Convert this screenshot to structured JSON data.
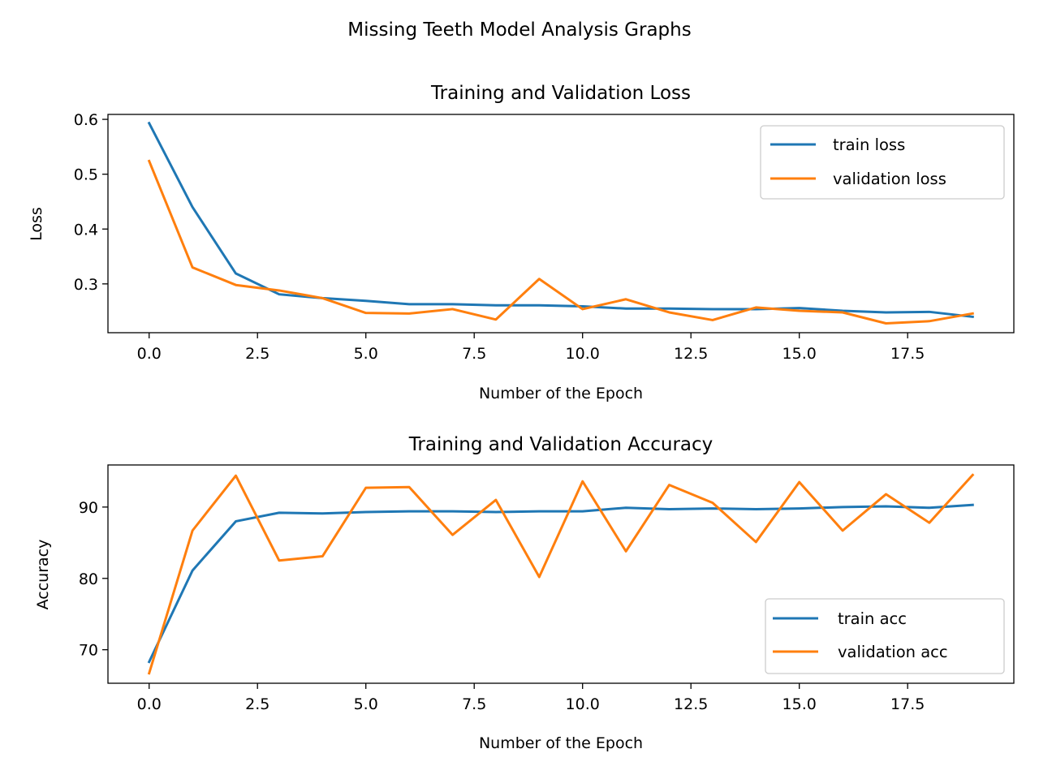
{
  "figure": {
    "suptitle": "Missing Teeth Model Analysis Graphs",
    "colors": {
      "train": "#1f77b4",
      "validation": "#ff7f0e"
    }
  },
  "chart_data": [
    {
      "type": "line",
      "title": "Training and Validation Loss",
      "xlabel": "Number of the Epoch",
      "ylabel": "Loss",
      "xlim": [
        -0.95,
        19.95
      ],
      "ylim": [
        0.211,
        0.609
      ],
      "xticks": [
        0.0,
        2.5,
        5.0,
        7.5,
        10.0,
        12.5,
        15.0,
        17.5
      ],
      "xtick_labels": [
        "0.0",
        "2.5",
        "5.0",
        "7.5",
        "10.0",
        "12.5",
        "15.0",
        "17.5"
      ],
      "yticks": [
        0.3,
        0.4,
        0.5,
        0.6
      ],
      "ytick_labels": [
        "0.3",
        "0.4",
        "0.5",
        "0.6"
      ],
      "legend": "top-right",
      "grid": false,
      "x": [
        0,
        1,
        2,
        3,
        4,
        5,
        6,
        7,
        8,
        9,
        10,
        11,
        12,
        13,
        14,
        15,
        16,
        17,
        18,
        19
      ],
      "series": [
        {
          "name": "train loss",
          "color": "#1f77b4",
          "values": [
            0.593,
            0.44,
            0.319,
            0.281,
            0.274,
            0.269,
            0.263,
            0.263,
            0.261,
            0.261,
            0.259,
            0.255,
            0.255,
            0.254,
            0.254,
            0.256,
            0.251,
            0.248,
            0.249,
            0.24
          ]
        },
        {
          "name": "validation loss",
          "color": "#ff7f0e",
          "values": [
            0.524,
            0.33,
            0.298,
            0.288,
            0.274,
            0.247,
            0.246,
            0.254,
            0.235,
            0.309,
            0.254,
            0.272,
            0.248,
            0.234,
            0.257,
            0.251,
            0.248,
            0.228,
            0.232,
            0.246
          ]
        }
      ]
    },
    {
      "type": "line",
      "title": "Training and Validation Accuracy",
      "xlabel": "Number of the Epoch",
      "ylabel": "Accuracy",
      "xlim": [
        -0.95,
        19.95
      ],
      "ylim": [
        65.3,
        95.9
      ],
      "xticks": [
        0.0,
        2.5,
        5.0,
        7.5,
        10.0,
        12.5,
        15.0,
        17.5
      ],
      "xtick_labels": [
        "0.0",
        "2.5",
        "5.0",
        "7.5",
        "10.0",
        "12.5",
        "15.0",
        "17.5"
      ],
      "yticks": [
        70,
        80,
        90
      ],
      "ytick_labels": [
        "70",
        "80",
        "90"
      ],
      "legend": "bottom-right",
      "grid": false,
      "x": [
        0,
        1,
        2,
        3,
        4,
        5,
        6,
        7,
        8,
        9,
        10,
        11,
        12,
        13,
        14,
        15,
        16,
        17,
        18,
        19
      ],
      "series": [
        {
          "name": "train acc",
          "color": "#1f77b4",
          "values": [
            68.3,
            81.1,
            88.0,
            89.2,
            89.1,
            89.3,
            89.4,
            89.4,
            89.3,
            89.4,
            89.4,
            89.9,
            89.7,
            89.8,
            89.7,
            89.8,
            90.0,
            90.1,
            89.9,
            90.3
          ]
        },
        {
          "name": "validation acc",
          "color": "#ff7f0e",
          "values": [
            66.7,
            86.7,
            94.4,
            82.5,
            83.1,
            92.7,
            92.8,
            86.1,
            91.0,
            80.2,
            93.6,
            83.8,
            93.1,
            90.6,
            85.1,
            93.5,
            86.7,
            91.8,
            87.8,
            94.5
          ]
        }
      ]
    }
  ]
}
